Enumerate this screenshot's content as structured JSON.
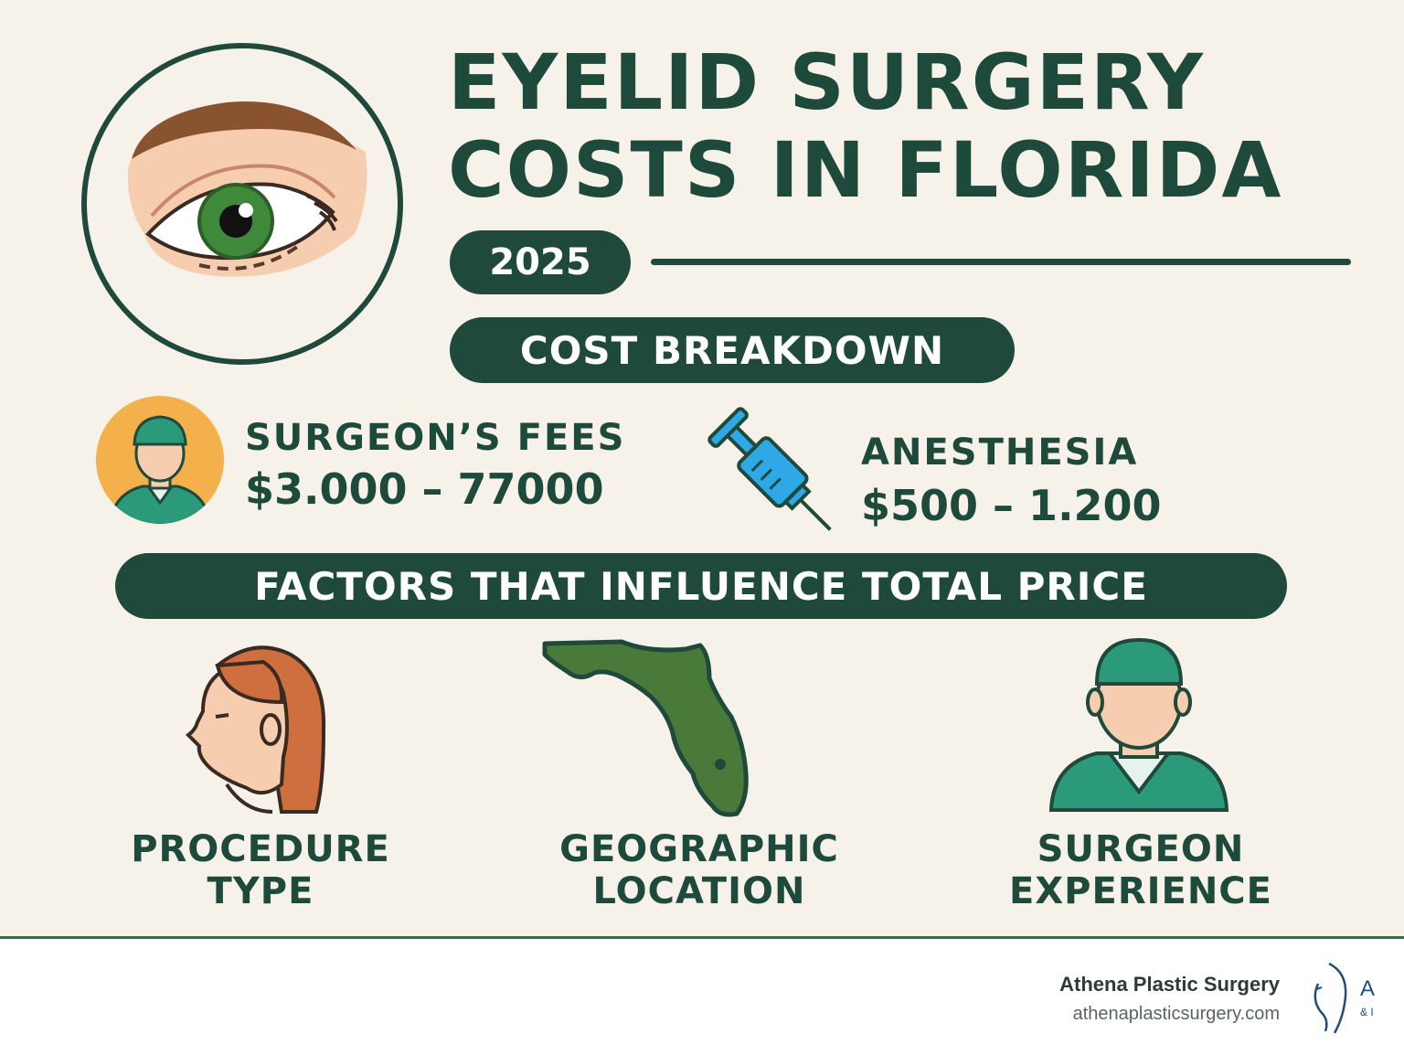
{
  "title_line1": "EYELID SURGERY",
  "title_line2": "COSTS IN FLORIDA",
  "year": "2025",
  "cost_breakdown_label": "COST BREAKDOWN",
  "costs": [
    {
      "label": "SURGEON’S FEES",
      "value": "$3.000 – 77000",
      "icon": "surgeon-avatar-icon"
    },
    {
      "label": "ANESTHESIA",
      "value": "$500 – 1.200",
      "icon": "syringe-icon"
    }
  ],
  "factors_label": "FACTORS THAT INFLUENCE TOTAL PRICE",
  "factors": [
    {
      "line1": "PROCEDURE",
      "line2": "TYPE",
      "icon": "woman-profile-icon"
    },
    {
      "line1": "GEOGRAPHIC",
      "line2": "LOCATION",
      "icon": "florida-map-icon"
    },
    {
      "line1": "SURGEON",
      "line2": "EXPERIENCE",
      "icon": "surgeon-icon"
    }
  ],
  "footer": {
    "brand": "Athena Plastic Surgery",
    "url": "athenaplasticsurgery.com",
    "logo_letter": "A",
    "logo_sub": "& I"
  },
  "colors": {
    "background": "#f6f2ea",
    "primary_green": "#1f4a3b",
    "teal": "#2a9a7a",
    "orange": "#f4b04a",
    "syringe_blue": "#2fa8e8",
    "map_green": "#4a7a3a"
  }
}
